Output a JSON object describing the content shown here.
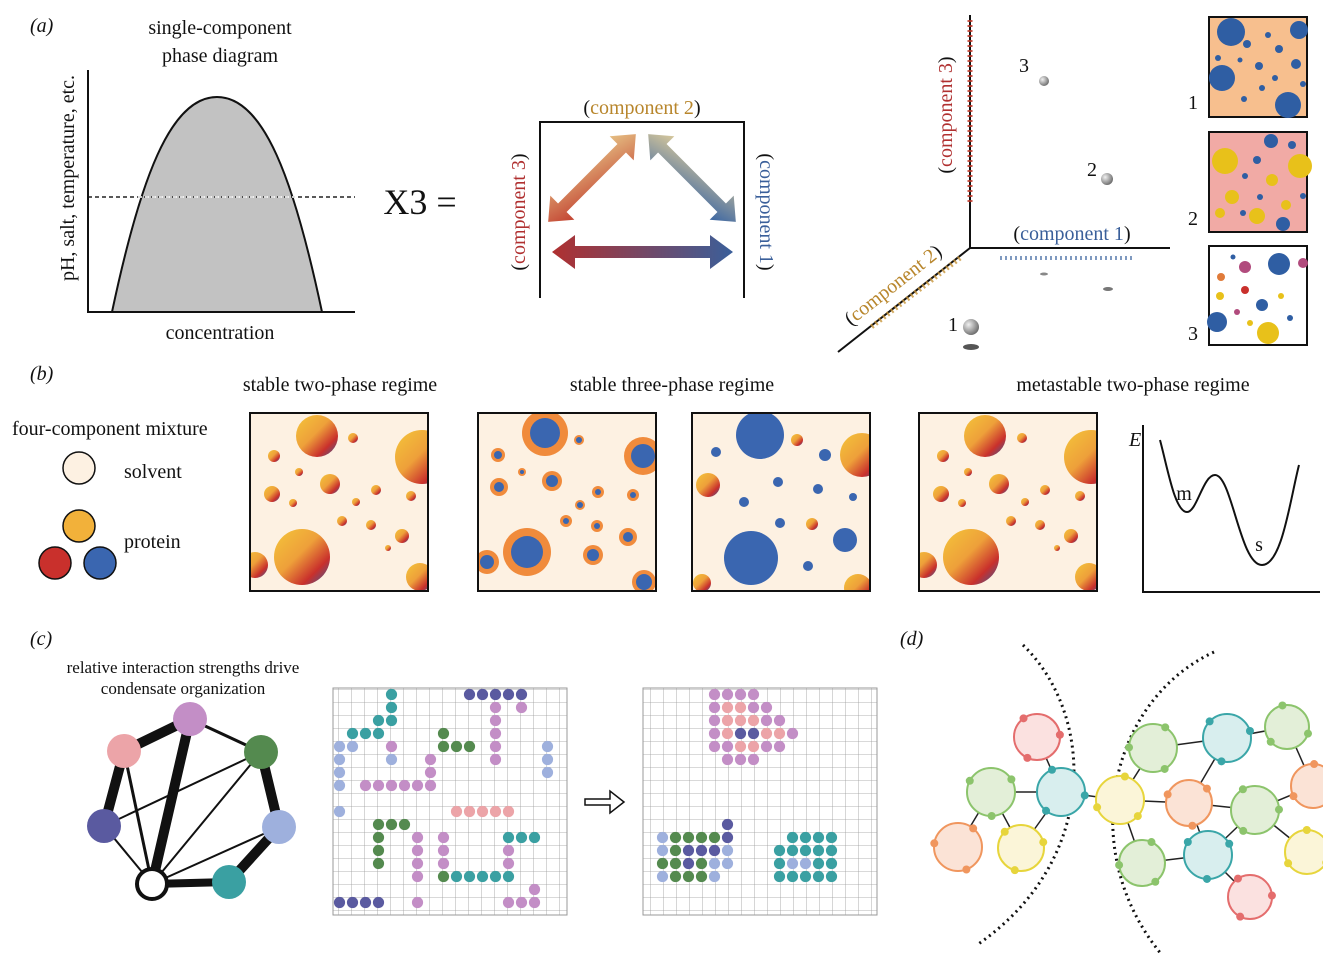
{
  "panel_labels": {
    "a": "(a)",
    "b": "(b)",
    "c": "(c)",
    "d": "(d)"
  },
  "colors": {
    "component1": "#3a5f9a",
    "component2": "#b8862c",
    "component3": "#b03030",
    "dense_gray": "#c0c0c0",
    "solvent": "#fdf1e2",
    "protein_yellow": "#f2b13a",
    "protein_red": "#c9302c",
    "protein_blue": "#3a66b0",
    "shell_orange": "#f08b3c"
  },
  "panel_a": {
    "phase_title_line1": "single-component",
    "phase_title_line2": "phase diagram",
    "y_axis_label": "pH, salt, temperature, etc.",
    "x_axis_label": "concentration",
    "equals_text": "X3 =",
    "triangle": {
      "top_label": "component 2",
      "left_label": "component 3",
      "right_label": "component 1",
      "open_paren": "(",
      "close_paren": ")"
    },
    "axes3d": {
      "component1": "component 1",
      "component2": "component 2",
      "component3": "component 3",
      "point_labels": [
        "1",
        "2",
        "3"
      ]
    },
    "box_labels": [
      "1",
      "2",
      "3"
    ]
  },
  "panel_b": {
    "legend_title": "four-component mixture",
    "solvent_label": "solvent",
    "protein_label": "protein",
    "regime1": "stable two-phase regime",
    "regime2": "stable three-phase regime",
    "regime3": "metastable two-phase regime",
    "energy_label": "E",
    "minimum_m": "m",
    "minimum_s": "s"
  },
  "panel_c": {
    "caption_line1": "relative interaction strengths drive",
    "caption_line2": "condensate organization",
    "arrow_icon": "right-arrow-icon"
  },
  "panel_d": {}
}
